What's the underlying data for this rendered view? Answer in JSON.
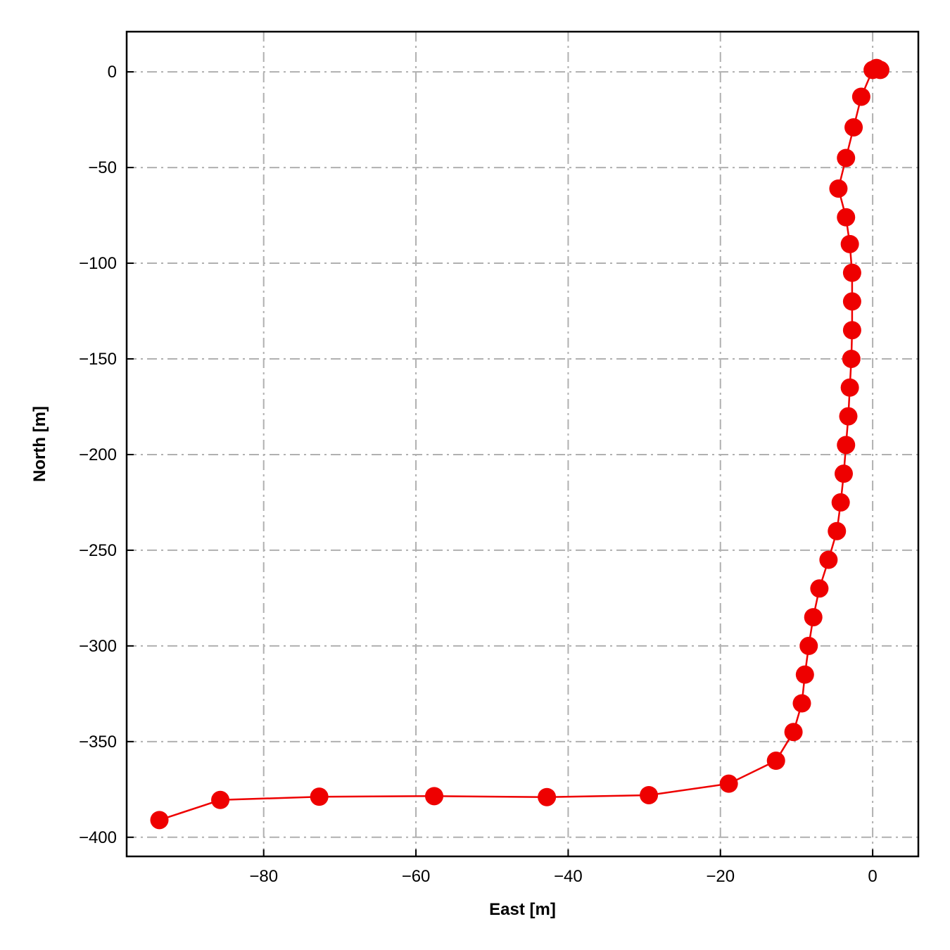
{
  "chart_data": {
    "type": "line",
    "title": "",
    "xlabel": "East [m]",
    "ylabel": "North [m]",
    "xlim": [
      -98,
      6
    ],
    "ylim": [
      -410,
      21
    ],
    "xticks": [
      -80,
      -60,
      -40,
      -20,
      0
    ],
    "yticks": [
      0,
      -50,
      -100,
      -150,
      -200,
      -250,
      -300,
      -350,
      -400
    ],
    "xtick_labels": [
      "−80",
      "−60",
      "−40",
      "−20",
      "0"
    ],
    "ytick_labels": [
      "0",
      "−50",
      "−100",
      "−150",
      "−200",
      "−250",
      "−300",
      "−350",
      "−400"
    ],
    "grid": true,
    "grid_style": "dash-dot",
    "line_color": "#ee0000",
    "marker_color": "#ee0000",
    "grid_color": "#b0b0b0",
    "series": [
      {
        "x": [
          1.0,
          0.5,
          0.0,
          -1.5,
          -2.5,
          -3.5,
          -4.5,
          -3.5,
          -3.0,
          -2.7,
          -2.7,
          -2.7,
          -2.8,
          -3.0,
          -3.2,
          -3.5,
          -3.8,
          -4.2,
          -4.7,
          -5.8,
          -7.0,
          -7.8,
          -8.4,
          -8.9,
          -9.3,
          -10.4,
          -12.7,
          -18.9,
          -29.4,
          -42.8,
          -57.6,
          -72.7,
          -85.7,
          -93.7
        ],
        "y": [
          1,
          2,
          1,
          -13,
          -29,
          -45,
          -61,
          -76,
          -90,
          -105,
          -120,
          -135,
          -150,
          -165,
          -180,
          -195,
          -210,
          -225,
          -240,
          -255,
          -270,
          -285,
          -300,
          -315,
          -330,
          -345,
          -360,
          -372,
          -378,
          -379,
          -378.5,
          -378.8,
          -380.5,
          -391
        ]
      }
    ]
  }
}
